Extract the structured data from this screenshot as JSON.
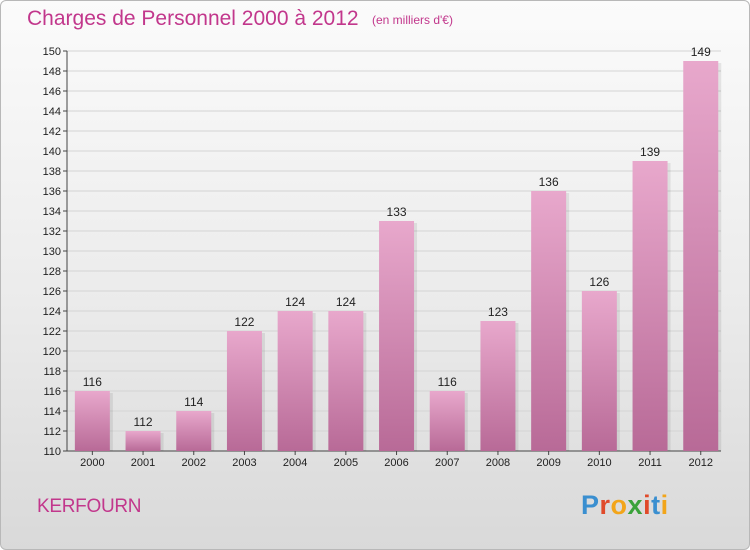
{
  "header": {
    "title": "Charges de Personnel 2000 à 2012",
    "subtitle": "(en milliers d'€)"
  },
  "footer": {
    "commune": "KERFOURN",
    "brand": "Proxiti"
  },
  "colors": {
    "title": "#c2378c",
    "bar_top": "#e8a8cc",
    "bar_bottom": "#b86a97",
    "brand_letters": [
      "#3a8fd0",
      "#e04a2a",
      "#f2a51a",
      "#3aa23a",
      "#e04a2a",
      "#3a8fd0",
      "#f2a51a"
    ]
  },
  "chart_data": {
    "type": "bar",
    "categories": [
      "2000",
      "2001",
      "2002",
      "2003",
      "2004",
      "2005",
      "2006",
      "2007",
      "2008",
      "2009",
      "2010",
      "2011",
      "2012"
    ],
    "values": [
      116,
      112,
      114,
      122,
      124,
      124,
      133,
      116,
      123,
      136,
      126,
      139,
      149
    ],
    "ylim": [
      110,
      150
    ],
    "yticks": [
      110,
      112,
      114,
      116,
      118,
      120,
      122,
      124,
      126,
      128,
      130,
      132,
      134,
      136,
      138,
      140,
      142,
      144,
      146,
      148,
      150
    ],
    "grid": true,
    "xlabel": "",
    "ylabel": ""
  }
}
